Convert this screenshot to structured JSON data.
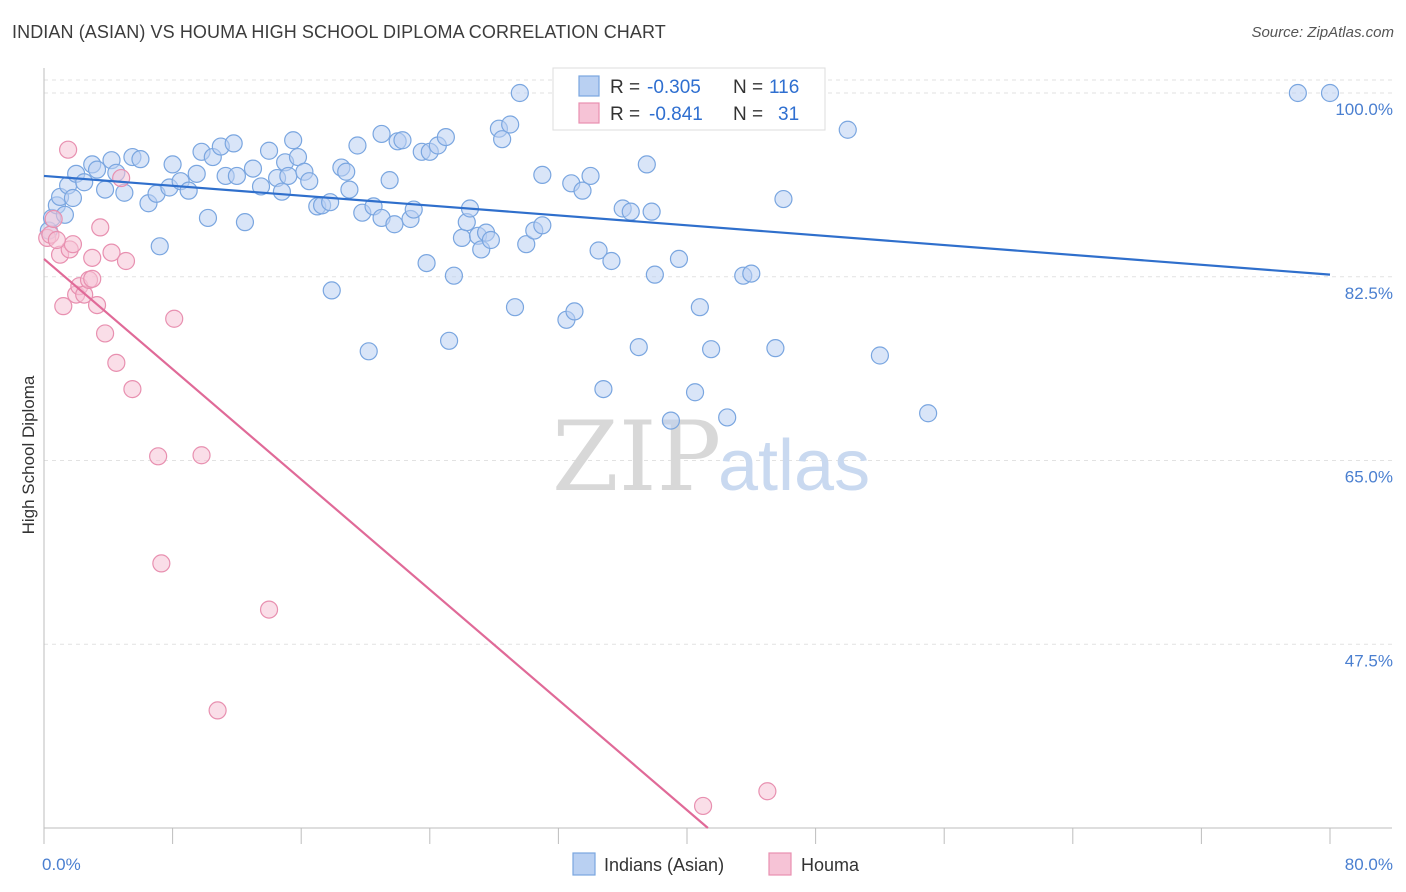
{
  "header": {
    "title": "INDIAN (ASIAN) VS HOUMA HIGH SCHOOL DIPLOMA CORRELATION CHART",
    "source": "Source: ZipAtlas.com"
  },
  "watermark": {
    "zip": "ZIP",
    "atlas": "atlas"
  },
  "chart_data": {
    "type": "scatter",
    "title": "INDIAN (ASIAN) VS HOUMA HIGH SCHOOL DIPLOMA CORRELATION CHART",
    "xlabel": "",
    "ylabel": "High School Diploma",
    "xlim": [
      0,
      80
    ],
    "ylim": [
      30,
      102
    ],
    "x_tick_labels": [
      {
        "value": 0,
        "label": "0.0%"
      },
      {
        "value": 80,
        "label": "80.0%"
      }
    ],
    "y_ticks": [
      {
        "value": 100,
        "label": "100.0%"
      },
      {
        "value": 82.5,
        "label": "82.5%"
      },
      {
        "value": 65,
        "label": "65.0%"
      },
      {
        "value": 47.5,
        "label": "47.5%"
      }
    ],
    "x_minor_ticks": [
      0,
      8,
      16,
      24,
      32,
      40,
      48,
      56,
      64,
      72,
      80
    ],
    "grid": true,
    "legend_position": "bottom-center",
    "stats_box": [
      {
        "r_label": "R =",
        "r_value": "-0.305",
        "n_label": "N =",
        "n_value": "116"
      },
      {
        "r_label": "R =",
        "r_value": "-0.841",
        "n_label": "N =",
        "n_value": "31"
      }
    ],
    "series": [
      {
        "name": "Indians (Asian)",
        "color": "#7aa6e0",
        "fill": "#b9d0f2",
        "trend": {
          "x": [
            0,
            80
          ],
          "y": [
            92.1,
            82.7
          ]
        },
        "points": [
          [
            0.3,
            86.9
          ],
          [
            0.5,
            88.1
          ],
          [
            0.8,
            89.3
          ],
          [
            1.0,
            90.1
          ],
          [
            1.3,
            88.4
          ],
          [
            1.5,
            91.2
          ],
          [
            1.8,
            90.0
          ],
          [
            2.0,
            92.3
          ],
          [
            2.5,
            91.5
          ],
          [
            3.0,
            93.2
          ],
          [
            3.3,
            92.7
          ],
          [
            3.8,
            90.8
          ],
          [
            4.2,
            93.6
          ],
          [
            4.5,
            92.4
          ],
          [
            5.0,
            90.5
          ],
          [
            5.5,
            93.9
          ],
          [
            6.0,
            93.7
          ],
          [
            6.5,
            89.5
          ],
          [
            7.0,
            90.4
          ],
          [
            7.2,
            85.4
          ],
          [
            7.8,
            91.0
          ],
          [
            8.0,
            93.2
          ],
          [
            8.5,
            91.6
          ],
          [
            9.0,
            90.7
          ],
          [
            9.5,
            92.3
          ],
          [
            9.8,
            94.4
          ],
          [
            10.2,
            88.1
          ],
          [
            10.5,
            93.9
          ],
          [
            11.0,
            94.9
          ],
          [
            11.3,
            92.1
          ],
          [
            11.8,
            95.2
          ],
          [
            12.0,
            92.1
          ],
          [
            12.5,
            87.7
          ],
          [
            13.0,
            92.8
          ],
          [
            13.5,
            91.1
          ],
          [
            14.0,
            94.5
          ],
          [
            14.5,
            91.9
          ],
          [
            15.0,
            93.4
          ],
          [
            15.2,
            92.1
          ],
          [
            15.5,
            95.5
          ],
          [
            15.8,
            93.9
          ],
          [
            16.2,
            92.5
          ],
          [
            16.5,
            91.6
          ],
          [
            17.0,
            89.2
          ],
          [
            17.3,
            89.3
          ],
          [
            17.8,
            89.6
          ],
          [
            17.9,
            81.2
          ],
          [
            18.5,
            92.9
          ],
          [
            18.8,
            92.5
          ],
          [
            19.0,
            90.8
          ],
          [
            19.5,
            95.0
          ],
          [
            19.8,
            88.6
          ],
          [
            20.2,
            75.4
          ],
          [
            20.5,
            89.2
          ],
          [
            21.0,
            88.1
          ],
          [
            21.0,
            96.1
          ],
          [
            21.5,
            91.7
          ],
          [
            22.0,
            95.4
          ],
          [
            22.3,
            95.5
          ],
          [
            22.8,
            88.0
          ],
          [
            23.0,
            88.9
          ],
          [
            23.5,
            94.4
          ],
          [
            23.8,
            83.8
          ],
          [
            24.0,
            94.4
          ],
          [
            24.5,
            95.0
          ],
          [
            25.0,
            95.8
          ],
          [
            25.2,
            76.4
          ],
          [
            25.5,
            82.6
          ],
          [
            26.0,
            86.2
          ],
          [
            26.3,
            87.7
          ],
          [
            26.5,
            89.0
          ],
          [
            27.0,
            86.4
          ],
          [
            27.2,
            85.1
          ],
          [
            27.5,
            86.7
          ],
          [
            27.8,
            86.0
          ],
          [
            28.3,
            96.6
          ],
          [
            28.5,
            95.6
          ],
          [
            29.0,
            97.0
          ],
          [
            29.3,
            79.6
          ],
          [
            29.6,
            100.0
          ],
          [
            30.0,
            85.6
          ],
          [
            30.5,
            86.9
          ],
          [
            31.0,
            87.4
          ],
          [
            31.0,
            92.2
          ],
          [
            32.5,
            78.4
          ],
          [
            32.8,
            91.4
          ],
          [
            33.0,
            79.2
          ],
          [
            33.5,
            90.7
          ],
          [
            34.0,
            92.1
          ],
          [
            34.5,
            85.0
          ],
          [
            34.8,
            71.8
          ],
          [
            35.3,
            84.0
          ],
          [
            36.0,
            89.0
          ],
          [
            36.5,
            88.7
          ],
          [
            37.0,
            75.8
          ],
          [
            37.5,
            93.2
          ],
          [
            37.8,
            88.7
          ],
          [
            38.0,
            82.7
          ],
          [
            39.0,
            68.8
          ],
          [
            39.5,
            84.2
          ],
          [
            40.5,
            71.5
          ],
          [
            40.8,
            79.6
          ],
          [
            41.5,
            75.6
          ],
          [
            42.5,
            69.1
          ],
          [
            43.0,
            100.0
          ],
          [
            43.5,
            82.6
          ],
          [
            44.0,
            82.8
          ],
          [
            45.5,
            75.7
          ],
          [
            46.0,
            89.9
          ],
          [
            50.0,
            96.5
          ],
          [
            52.0,
            75.0
          ],
          [
            55.0,
            69.5
          ],
          [
            78.0,
            100.0
          ],
          [
            80.0,
            100.0
          ],
          [
            21.8,
            87.5
          ],
          [
            14.8,
            90.6
          ]
        ]
      },
      {
        "name": "Houma",
        "color": "#e890b0",
        "fill": "#f6c3d6",
        "trend": {
          "x": [
            0,
            41.3
          ],
          "y": [
            84.2,
            30.0
          ]
        },
        "points": [
          [
            0.2,
            86.2
          ],
          [
            0.4,
            86.5
          ],
          [
            0.6,
            88.0
          ],
          [
            1.0,
            84.6
          ],
          [
            1.2,
            79.7
          ],
          [
            1.5,
            94.6
          ],
          [
            1.6,
            85.1
          ],
          [
            1.8,
            85.6
          ],
          [
            2.0,
            80.8
          ],
          [
            2.2,
            81.6
          ],
          [
            2.5,
            80.8
          ],
          [
            2.8,
            82.2
          ],
          [
            3.0,
            84.3
          ],
          [
            3.0,
            82.3
          ],
          [
            3.3,
            79.8
          ],
          [
            3.5,
            87.2
          ],
          [
            3.8,
            77.1
          ],
          [
            4.2,
            84.8
          ],
          [
            4.5,
            74.3
          ],
          [
            4.8,
            91.9
          ],
          [
            5.1,
            84.0
          ],
          [
            5.5,
            71.8
          ],
          [
            7.1,
            65.4
          ],
          [
            7.3,
            55.2
          ],
          [
            8.1,
            78.5
          ],
          [
            9.8,
            65.5
          ],
          [
            10.8,
            41.2
          ],
          [
            14.0,
            50.8
          ],
          [
            41.0,
            32.1
          ],
          [
            45.0,
            33.5
          ],
          [
            0.8,
            86.0
          ]
        ]
      }
    ]
  }
}
